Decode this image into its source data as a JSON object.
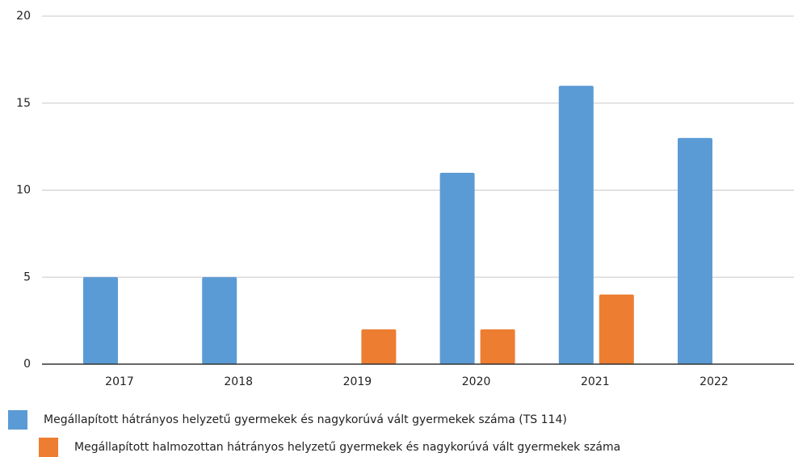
{
  "chart_data": {
    "type": "bar",
    "categories": [
      "2017",
      "2018",
      "2019",
      "2020",
      "2021",
      "2022"
    ],
    "series": [
      {
        "name": "Megállapított hátrányos helyzetű gyermekek és nagykorúvá vált gyermekek száma (TS 114)",
        "color": "#5b9bd5",
        "values": [
          5,
          5,
          0,
          11,
          16,
          13
        ]
      },
      {
        "name": "Megállapított halmozottan hátrányos helyzetű gyermekek és nagykorúvá vált gyermekek száma",
        "color": "#ed7d31",
        "values": [
          0,
          0,
          2,
          2,
          4,
          0
        ]
      }
    ],
    "ylim": [
      0,
      20
    ],
    "yticks": [
      0,
      5,
      10,
      15,
      20
    ],
    "grid": true,
    "legend": "bottom"
  }
}
